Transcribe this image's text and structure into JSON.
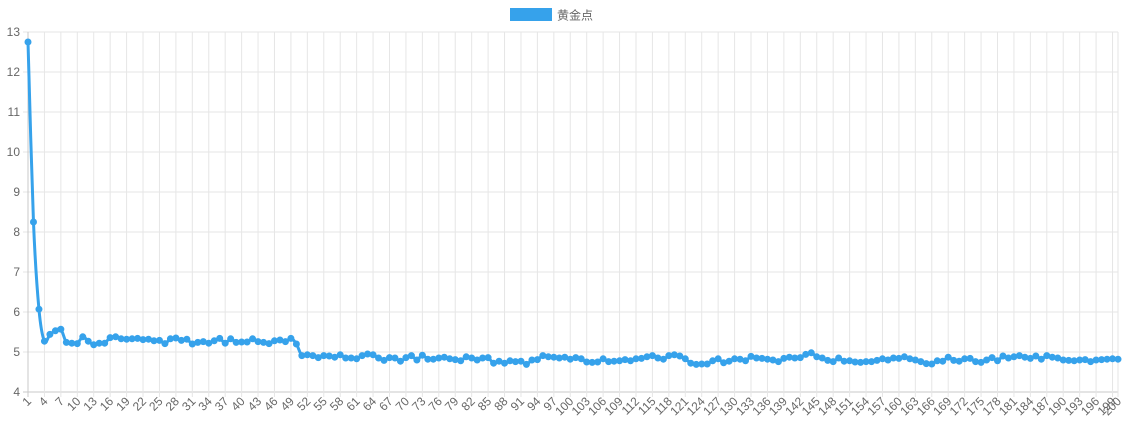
{
  "chart_data": {
    "type": "line",
    "xlabel": "",
    "ylabel": "",
    "ylim": [
      4,
      13
    ],
    "yticks": [
      4,
      5,
      6,
      7,
      8,
      9,
      10,
      11,
      12,
      13
    ],
    "x_start": 1,
    "x_end": 200,
    "xtick_step": 3,
    "grid": true,
    "legend_position": "top-center",
    "color": "#36a2eb",
    "series": [
      {
        "name": "黄金点",
        "values": [
          12.75,
          8.25,
          6.07,
          5.27,
          5.44,
          5.53,
          5.57,
          5.24,
          5.22,
          5.21,
          5.38,
          5.27,
          5.18,
          5.22,
          5.22,
          5.36,
          5.38,
          5.33,
          5.32,
          5.33,
          5.34,
          5.31,
          5.32,
          5.28,
          5.29,
          5.21,
          5.33,
          5.35,
          5.29,
          5.32,
          5.2,
          5.24,
          5.26,
          5.22,
          5.28,
          5.34,
          5.22,
          5.33,
          5.24,
          5.25,
          5.25,
          5.33,
          5.26,
          5.24,
          5.21,
          5.28,
          5.3,
          5.26,
          5.34,
          5.2,
          4.91,
          4.93,
          4.91,
          4.86,
          4.91,
          4.9,
          4.87,
          4.93,
          4.85,
          4.85,
          4.83,
          4.91,
          4.95,
          4.93,
          4.85,
          4.79,
          4.86,
          4.85,
          4.77,
          4.86,
          4.91,
          4.8,
          4.92,
          4.82,
          4.82,
          4.85,
          4.87,
          4.83,
          4.81,
          4.78,
          4.88,
          4.85,
          4.8,
          4.85,
          4.86,
          4.72,
          4.77,
          4.72,
          4.78,
          4.76,
          4.77,
          4.69,
          4.8,
          4.81,
          4.91,
          4.88,
          4.87,
          4.85,
          4.87,
          4.82,
          4.86,
          4.83,
          4.75,
          4.74,
          4.75,
          4.83,
          4.76,
          4.77,
          4.78,
          4.81,
          4.78,
          4.83,
          4.84,
          4.88,
          4.91,
          4.85,
          4.82,
          4.91,
          4.93,
          4.9,
          4.83,
          4.72,
          4.69,
          4.7,
          4.7,
          4.78,
          4.83,
          4.73,
          4.77,
          4.83,
          4.82,
          4.78,
          4.89,
          4.85,
          4.84,
          4.82,
          4.8,
          4.76,
          4.84,
          4.87,
          4.85,
          4.86,
          4.94,
          4.98,
          4.88,
          4.85,
          4.79,
          4.76,
          4.85,
          4.77,
          4.78,
          4.75,
          4.74,
          4.76,
          4.76,
          4.79,
          4.83,
          4.8,
          4.85,
          4.84,
          4.88,
          4.83,
          4.8,
          4.76,
          4.71,
          4.7,
          4.78,
          4.77,
          4.87,
          4.79,
          4.77,
          4.83,
          4.84,
          4.76,
          4.74,
          4.8,
          4.86,
          4.78,
          4.9,
          4.85,
          4.88,
          4.91,
          4.87,
          4.84,
          4.9,
          4.82,
          4.91,
          4.87,
          4.85,
          4.8,
          4.79,
          4.78,
          4.8,
          4.81,
          4.76,
          4.8,
          4.81,
          4.82,
          4.83,
          4.82
        ]
      }
    ]
  }
}
